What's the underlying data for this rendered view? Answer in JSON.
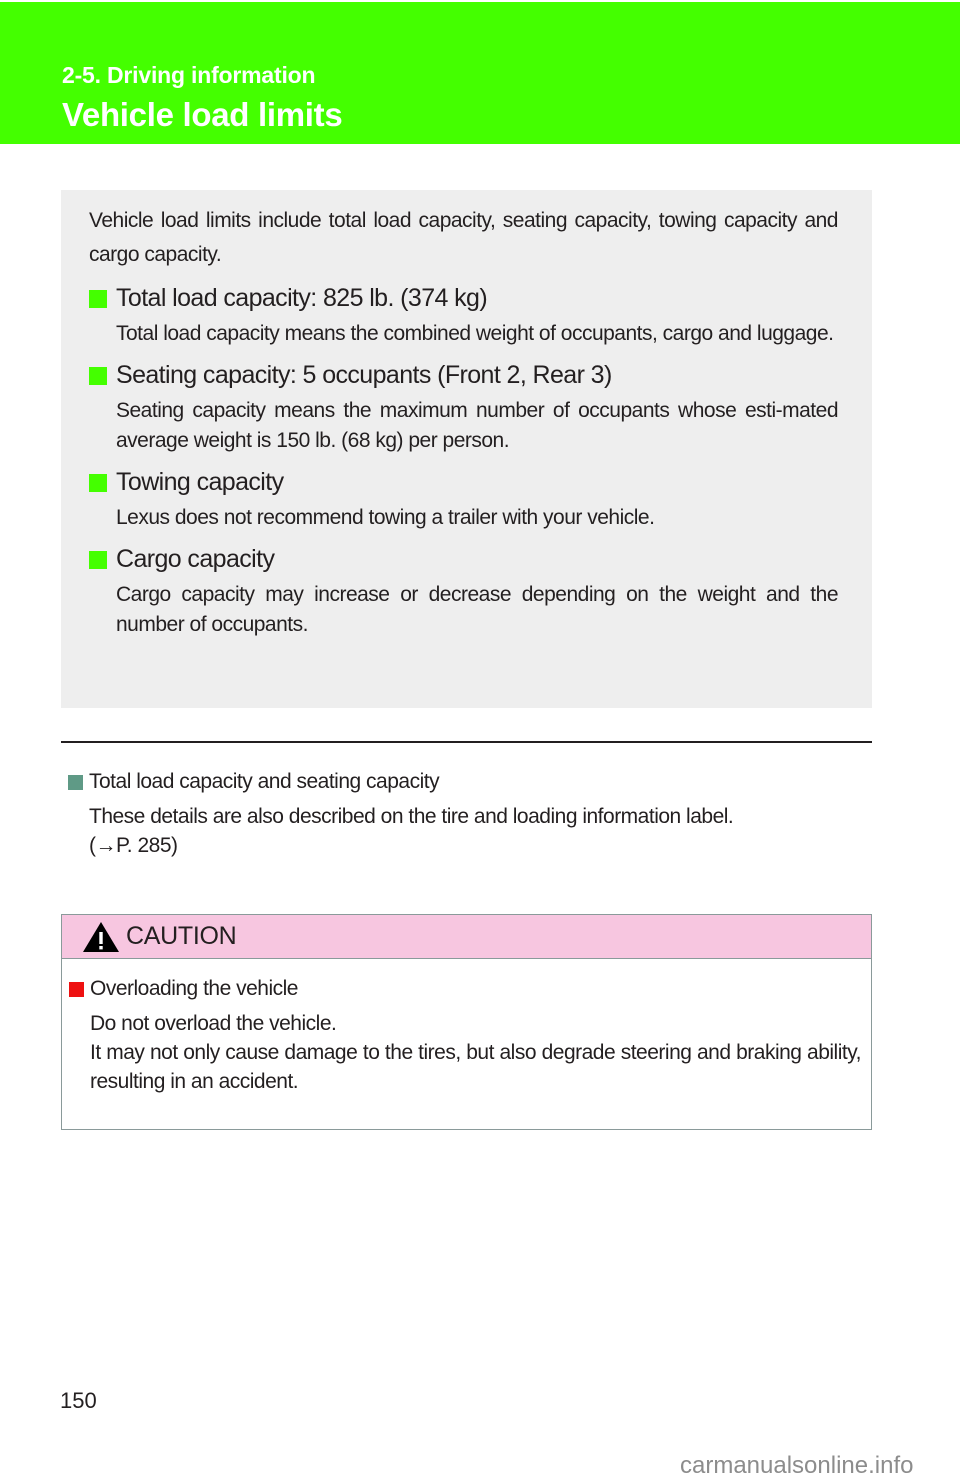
{
  "header": {
    "section": "2-5. Driving information",
    "title": "Vehicle load limits",
    "color": "#44ff00"
  },
  "summary": {
    "intro": "Vehicle load limits include total load capacity, seating capacity, towing capacity and cargo capacity.",
    "items": [
      {
        "heading": "Total load capacity: 825 lb. (374 kg)",
        "text": "Total load capacity means the combined weight of occupants, cargo and luggage."
      },
      {
        "heading": "Seating capacity: 5 occupants (Front 2, Rear 3)",
        "text": "Seating capacity means the maximum number of occupants whose esti-mated average weight is 150 lb. (68 kg) per person."
      },
      {
        "heading": "Towing capacity",
        "text": "Lexus does not recommend towing a trailer with your vehicle."
      },
      {
        "heading": "Cargo capacity",
        "text": "Cargo capacity may increase or decrease depending on the weight and the number of occupants."
      }
    ]
  },
  "note": {
    "heading": "Total load capacity and seating capacity",
    "line1": "These details are also described on the tire and loading information label.",
    "line2": "(→P. 285)"
  },
  "caution": {
    "label": "CAUTION",
    "heading": "Overloading the vehicle",
    "line1": "Do not overload the vehicle.",
    "line2": "It may not only cause damage to the tires, but also degrade steering and braking ability, resulting in an accident."
  },
  "page_number": "150",
  "watermark": "carmanualsonline.info"
}
